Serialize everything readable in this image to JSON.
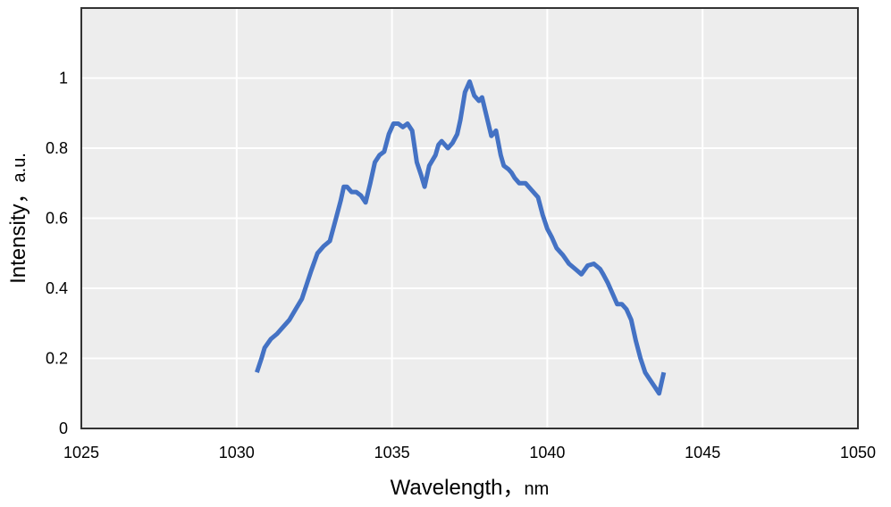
{
  "chart_data": {
    "type": "line",
    "title": "",
    "xlabel": "Wavelength",
    "xunit": "nm",
    "ylabel": "Intensity",
    "yunit": "a.u.",
    "label_separator": "，",
    "xlim": [
      1025,
      1050
    ],
    "ylim": [
      0,
      1.2
    ],
    "xticks": [
      1025,
      1030,
      1035,
      1040,
      1045,
      1050
    ],
    "yticks": [
      0,
      0.2,
      0.4,
      0.6,
      0.8,
      1
    ],
    "grid": true,
    "legend": "none",
    "colors": {
      "line": "#4472C4",
      "plot_bg": "#EDEDED",
      "grid": "#FFFFFF",
      "frame": "#333333"
    },
    "series": [
      {
        "x": [
          1030.65,
          1030.8,
          1030.9,
          1031.1,
          1031.3,
          1031.5,
          1031.7,
          1031.9,
          1032.1,
          1032.25,
          1032.4,
          1032.6,
          1032.8,
          1033.0,
          1033.2,
          1033.35,
          1033.45,
          1033.55,
          1033.7,
          1033.85,
          1034.0,
          1034.15,
          1034.3,
          1034.45,
          1034.6,
          1034.75,
          1034.9,
          1035.05,
          1035.2,
          1035.35,
          1035.5,
          1035.65,
          1035.8,
          1035.95,
          1036.05,
          1036.2,
          1036.4,
          1036.5,
          1036.6,
          1036.8,
          1036.95,
          1037.1,
          1037.2,
          1037.35,
          1037.5,
          1037.65,
          1037.8,
          1037.9,
          1038.05,
          1038.2,
          1038.35,
          1038.5,
          1038.6,
          1038.75,
          1038.85,
          1038.95,
          1039.1,
          1039.3,
          1039.5,
          1039.7,
          1039.85,
          1040.0,
          1040.15,
          1040.3,
          1040.5,
          1040.7,
          1040.9,
          1041.1,
          1041.3,
          1041.5,
          1041.7,
          1041.8,
          1041.95,
          1042.1,
          1042.25,
          1042.4,
          1042.55,
          1042.7,
          1042.85,
          1043.0,
          1043.15,
          1043.3,
          1043.45,
          1043.6,
          1043.75
        ],
        "y": [
          0.16,
          0.2,
          0.23,
          0.255,
          0.27,
          0.29,
          0.31,
          0.34,
          0.37,
          0.41,
          0.45,
          0.5,
          0.52,
          0.535,
          0.6,
          0.65,
          0.69,
          0.69,
          0.675,
          0.675,
          0.665,
          0.645,
          0.7,
          0.76,
          0.78,
          0.79,
          0.84,
          0.87,
          0.87,
          0.86,
          0.87,
          0.85,
          0.76,
          0.72,
          0.69,
          0.75,
          0.78,
          0.81,
          0.82,
          0.8,
          0.815,
          0.84,
          0.88,
          0.96,
          0.99,
          0.95,
          0.935,
          0.945,
          0.89,
          0.835,
          0.85,
          0.78,
          0.75,
          0.74,
          0.73,
          0.715,
          0.7,
          0.7,
          0.68,
          0.66,
          0.61,
          0.57,
          0.545,
          0.515,
          0.495,
          0.47,
          0.455,
          0.44,
          0.465,
          0.47,
          0.455,
          0.44,
          0.415,
          0.385,
          0.355,
          0.355,
          0.34,
          0.31,
          0.25,
          0.2,
          0.16,
          0.14,
          0.12,
          0.1,
          0.16
        ]
      }
    ]
  }
}
